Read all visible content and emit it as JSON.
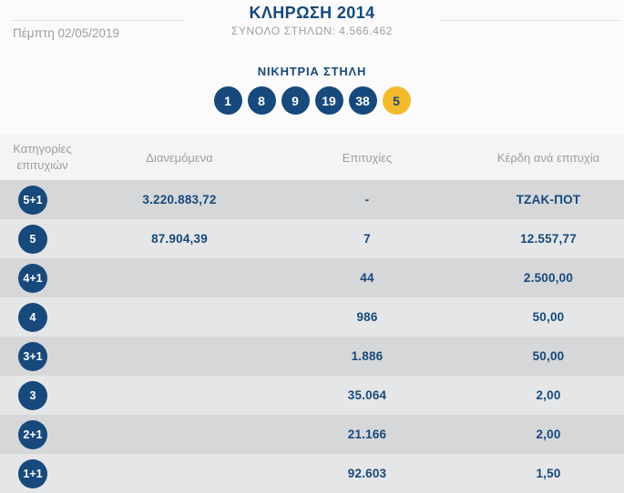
{
  "colors": {
    "navy": "#17497C",
    "gold": "#F3BB2C",
    "text_gray": "#9B9EA3",
    "header_bg": "#F4F4F5",
    "row_light": "#E5E6E8",
    "row_dark": "#D5D7D9",
    "page_bg": "#FBFBFB",
    "divider": "#DCDEE0"
  },
  "nav": {
    "prev_arrow": "‹"
  },
  "header": {
    "title": "ΚΛΗΡΩΣΗ 2014",
    "subtitle": "ΣΥΝΟΛΟ ΣΤΗΛΩΝ: 4.566.462",
    "date": "Πέμπτη 02/05/2019"
  },
  "winning": {
    "label": "ΝΙΚΗΤΡΙΑ ΣΤΗΛΗ",
    "numbers": [
      "1",
      "8",
      "9",
      "19",
      "38"
    ],
    "joker": "5"
  },
  "table": {
    "headers": {
      "category_line1": "Κατηγορίες",
      "category_line2": "επιτυχιών",
      "distributed": "Διανεμόμενα",
      "wins": "Επιτυχίες",
      "prize": "Κέρδη ανά επιτυχία"
    },
    "rows": [
      {
        "category": "5+1",
        "distributed": "3.220.883,72",
        "wins": "-",
        "prize": "ΤΖΑΚ-ΠΟΤ"
      },
      {
        "category": "5",
        "distributed": "87.904,39",
        "wins": "7",
        "prize": "12.557,77"
      },
      {
        "category": "4+1",
        "distributed": "",
        "wins": "44",
        "prize": "2.500,00"
      },
      {
        "category": "4",
        "distributed": "",
        "wins": "986",
        "prize": "50,00"
      },
      {
        "category": "3+1",
        "distributed": "",
        "wins": "1.886",
        "prize": "50,00"
      },
      {
        "category": "3",
        "distributed": "",
        "wins": "35.064",
        "prize": "2,00"
      },
      {
        "category": "2+1",
        "distributed": "",
        "wins": "21.166",
        "prize": "2,00"
      },
      {
        "category": "1+1",
        "distributed": "",
        "wins": "92.603",
        "prize": "1,50"
      }
    ]
  }
}
